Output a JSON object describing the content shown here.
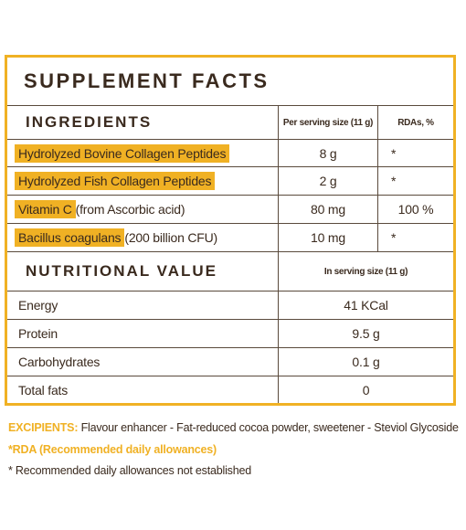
{
  "title": "SUPPLEMENT FACTS",
  "ingredients": {
    "heading": "INGREDIENTS",
    "col_serving": "Per serving size (11 g)",
    "col_rda": "RDAs, %",
    "rows": [
      {
        "name_highlight": "Hydrolyzed Bovine Collagen Peptides",
        "name_rest": "",
        "amount": "8 g",
        "rda": "*"
      },
      {
        "name_highlight": "Hydrolyzed Fish Collagen Peptides",
        "name_rest": "",
        "amount": "2 g",
        "rda": "*"
      },
      {
        "name_highlight": "Vitamin C",
        "name_rest": " (from Ascorbic acid)",
        "amount": "80 mg",
        "rda": "100 %"
      },
      {
        "name_highlight": "Bacillus coagulans",
        "name_rest": " (200 billion CFU)",
        "amount": "10 mg",
        "rda": "*"
      }
    ]
  },
  "nutrition": {
    "heading": "NUTRITIONAL VALUE",
    "col_serving": "In serving size (11 g)",
    "rows": [
      {
        "name": "Energy",
        "value": "41 KCal"
      },
      {
        "name": "Protein",
        "value": "9.5 g"
      },
      {
        "name": "Carbohydrates",
        "value": "0.1 g"
      },
      {
        "name": "Total fats",
        "value": "0"
      }
    ]
  },
  "footer": {
    "excipients_label": "EXCIPIENTS:",
    "excipients_text": " Flavour enhancer - Fat-reduced cocoa powder, sweetener - Steviol Glycoside",
    "rda_note": "*RDA (Recommended daily allowances)",
    "star_note": "* Recommended daily allowances not established"
  },
  "colors": {
    "accent": "#f0b124",
    "text": "#3a2a1e"
  }
}
